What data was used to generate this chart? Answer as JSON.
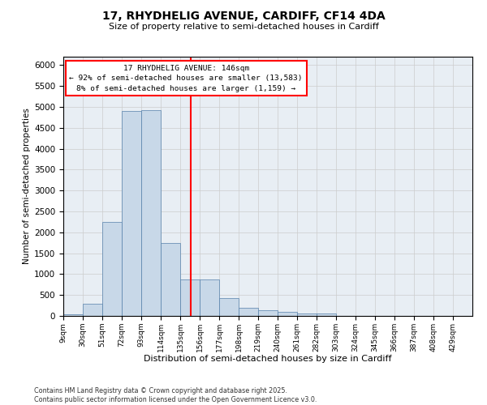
{
  "title_line1": "17, RHYDHELIG AVENUE, CARDIFF, CF14 4DA",
  "title_line2": "Size of property relative to semi-detached houses in Cardiff",
  "xlabel": "Distribution of semi-detached houses by size in Cardiff",
  "ylabel": "Number of semi-detached properties",
  "annotation_title": "17 RHYDHELIG AVENUE: 146sqm",
  "annotation_line2": "← 92% of semi-detached houses are smaller (13,583)",
  "annotation_line3": "8% of semi-detached houses are larger (1,159) →",
  "footer_line1": "Contains HM Land Registry data © Crown copyright and database right 2025.",
  "footer_line2": "Contains public sector information licensed under the Open Government Licence v3.0.",
  "bin_labels": [
    "9sqm",
    "30sqm",
    "51sqm",
    "72sqm",
    "93sqm",
    "114sqm",
    "135sqm",
    "156sqm",
    "177sqm",
    "198sqm",
    "219sqm",
    "240sqm",
    "261sqm",
    "282sqm",
    "303sqm",
    "324sqm",
    "345sqm",
    "366sqm",
    "387sqm",
    "408sqm",
    "429sqm"
  ],
  "bin_values": [
    30,
    290,
    2250,
    4900,
    4930,
    1750,
    870,
    870,
    430,
    190,
    130,
    95,
    65,
    55,
    0,
    0,
    0,
    0,
    0,
    0,
    0
  ],
  "property_value": 146,
  "bar_color": "#c8d8e8",
  "bar_edge_color": "#5580aa",
  "vline_color": "red",
  "grid_color": "#cccccc",
  "background_color": "#e8eef4",
  "ylim": [
    0,
    6200
  ],
  "yticks": [
    0,
    500,
    1000,
    1500,
    2000,
    2500,
    3000,
    3500,
    4000,
    4500,
    5000,
    5500,
    6000
  ]
}
